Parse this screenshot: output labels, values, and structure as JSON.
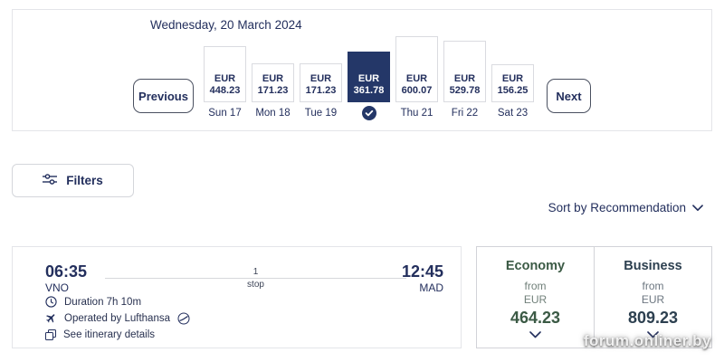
{
  "date_carousel": {
    "title": "Wednesday, 20 March 2024",
    "previous_label": "Previous",
    "next_label": "Next",
    "days": [
      {
        "label": "Sun 17",
        "currency": "EUR",
        "price": "448.23",
        "selected": false
      },
      {
        "label": "Mon 18",
        "currency": "EUR",
        "price": "171.23",
        "selected": false
      },
      {
        "label": "Tue 19",
        "currency": "EUR",
        "price": "171.23",
        "selected": false
      },
      {
        "currency": "EUR",
        "price": "361.78",
        "selected": true
      },
      {
        "label": "Thu 21",
        "currency": "EUR",
        "price": "600.07",
        "selected": false
      },
      {
        "label": "Fri 22",
        "currency": "EUR",
        "price": "529.78",
        "selected": false
      },
      {
        "label": "Sat 23",
        "currency": "EUR",
        "price": "156.25",
        "selected": false
      }
    ]
  },
  "filters": {
    "label": "Filters"
  },
  "sort": {
    "label": "Sort by Recommendation"
  },
  "flight": {
    "departure": {
      "time": "06:35",
      "airport": "VNO"
    },
    "arrival": {
      "time": "12:45",
      "airport": "MAD"
    },
    "stops": {
      "count": "1",
      "unit": "stop"
    },
    "duration": "Duration 7h 10m",
    "operated_by": "Operated by Lufthansa",
    "itinerary_link": "See itinerary details",
    "fares": [
      {
        "cabin": "Economy",
        "from_label": "from",
        "currency": "EUR",
        "price": "464.23",
        "accent": "#3b5a45",
        "muted": "#71807a"
      },
      {
        "cabin": "Business",
        "from_label": "from",
        "currency": "EUR",
        "price": "809.23",
        "accent": "#2d4050",
        "muted": "#6d7781"
      }
    ]
  },
  "watermark": "forum.onliner.by",
  "colors": {
    "navy": "#232f5d",
    "selected_day_bg": "#243768"
  }
}
